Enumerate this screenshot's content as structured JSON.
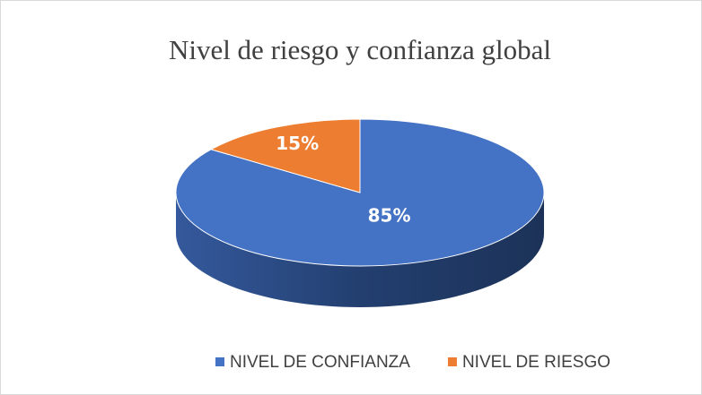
{
  "chart_data": {
    "type": "pie3d",
    "title": "Nivel de riesgo y confianza global",
    "categories": [
      "NIVEL DE CONFIANZA",
      "NIVEL DE RIESGO"
    ],
    "values": [
      85,
      15
    ],
    "value_labels": [
      "85%",
      "15%"
    ],
    "colors": [
      "#4472c4",
      "#ed7d31"
    ],
    "legend": "bottom"
  }
}
